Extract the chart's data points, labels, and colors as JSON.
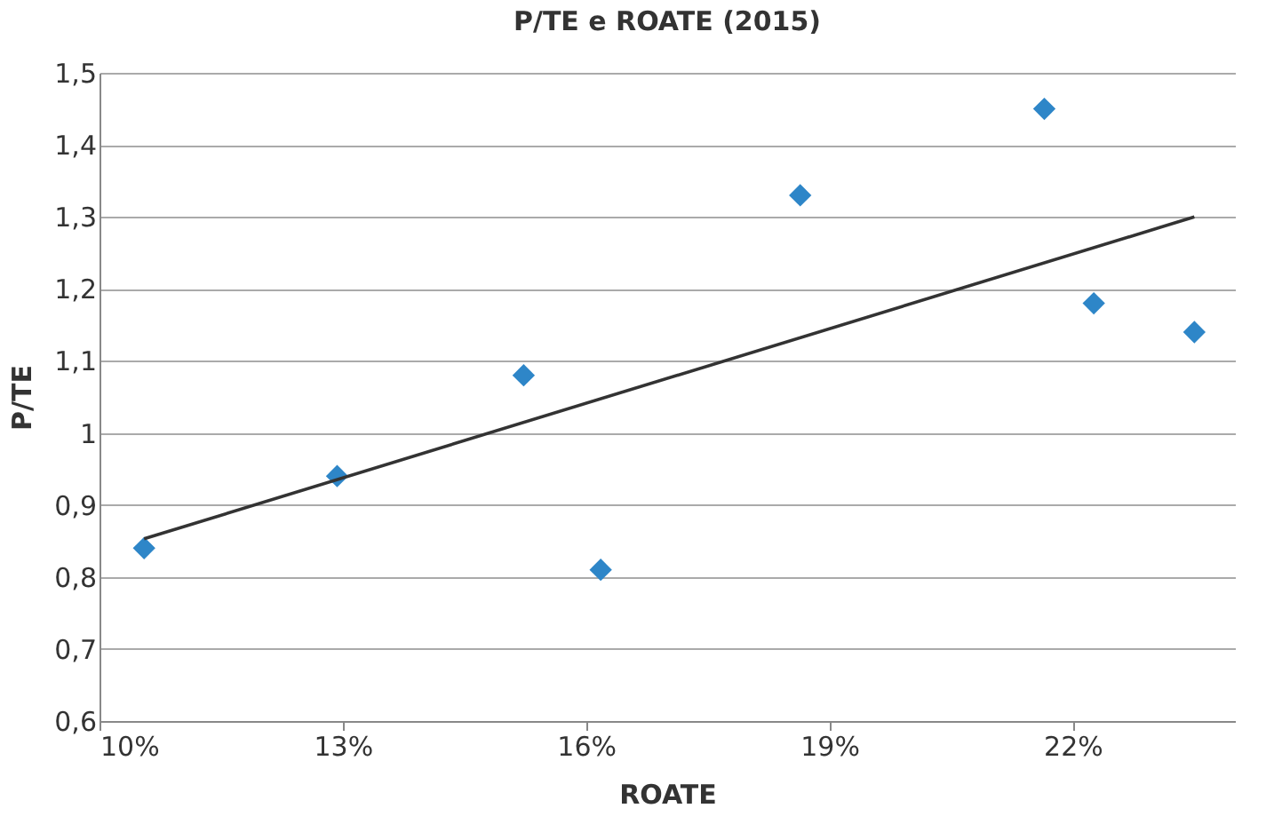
{
  "chart_data": {
    "type": "scatter",
    "title": "P/TE e ROATE (2015)",
    "xlabel": "ROATE",
    "ylabel": "P/TE",
    "series": [
      {
        "color": "#2e86c8",
        "x": [
          0.1055,
          0.1293,
          0.1523,
          0.1618,
          0.1864,
          0.2165,
          0.2226,
          0.235
        ],
        "values": [
          0.84,
          0.94,
          1.08,
          0.81,
          1.33,
          1.45,
          1.18,
          1.14
        ],
        "marker": "diamond"
      },
      {
        "type": "line",
        "color": "#333333",
        "x": [
          0.1055,
          0.235
        ],
        "values": [
          0.853,
          1.3
        ],
        "marker": "none",
        "line_style": "solid"
      }
    ],
    "xlim": [
      0.1,
      0.24
    ],
    "xticks": [
      {
        "value": 0.1,
        "label": "10%"
      },
      {
        "value": 0.13,
        "label": "13%"
      },
      {
        "value": 0.16,
        "label": "16%"
      },
      {
        "value": 0.19,
        "label": "19%"
      },
      {
        "value": 0.22,
        "label": "22%"
      }
    ],
    "ylim": [
      0.6,
      1.5
    ],
    "yticks": [
      {
        "value": 0.6,
        "label": "0,6"
      },
      {
        "value": 0.7,
        "label": "0,7"
      },
      {
        "value": 0.8,
        "label": "0,8"
      },
      {
        "value": 0.9,
        "label": "0,9"
      },
      {
        "value": 1,
        "label": "1"
      },
      {
        "value": 1.1,
        "label": "1,1"
      },
      {
        "value": 1.2,
        "label": "1,2"
      },
      {
        "value": 1.3,
        "label": "1,3"
      },
      {
        "value": 1.4,
        "label": "1,4"
      },
      {
        "value": 1.5,
        "label": "1,5"
      }
    ],
    "grid": "y"
  }
}
